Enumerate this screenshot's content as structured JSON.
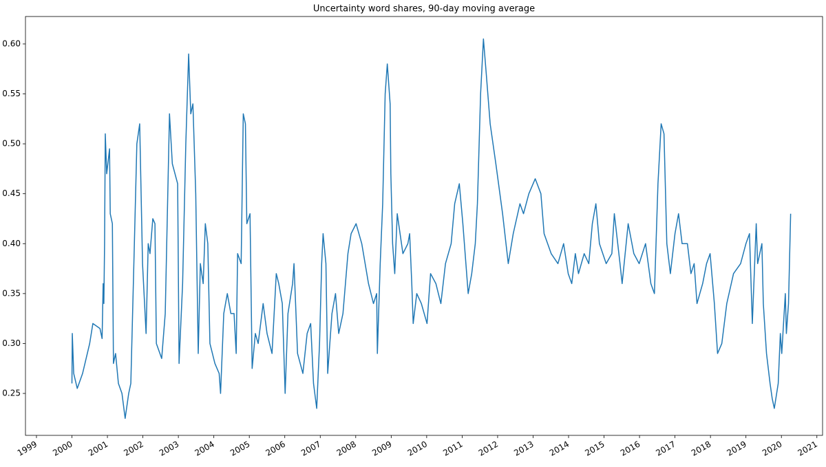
{
  "chart_data": {
    "type": "line",
    "title": "Uncertainty word shares, 90-day moving average",
    "color": "#1f77b4",
    "x": [
      2000.0,
      2000.01,
      2000.05,
      2000.15,
      2000.3,
      2000.5,
      2000.59,
      2000.79,
      2000.85,
      2000.88,
      2000.9,
      2000.92,
      2000.94,
      2000.98,
      2001.06,
      2001.08,
      2001.14,
      2001.17,
      2001.23,
      2001.31,
      2001.41,
      2001.5,
      2001.6,
      2001.66,
      2001.76,
      2001.83,
      2001.91,
      2001.99,
      2002.09,
      2002.15,
      2002.2,
      2002.28,
      2002.34,
      2002.38,
      2002.53,
      2002.63,
      2002.75,
      2002.83,
      2002.98,
      2003.02,
      2003.12,
      2003.21,
      2003.29,
      2003.35,
      2003.41,
      2003.49,
      2003.56,
      2003.62,
      2003.7,
      2003.76,
      2003.83,
      2003.89,
      2004.03,
      2004.15,
      2004.19,
      2004.28,
      2004.38,
      2004.48,
      2004.57,
      2004.63,
      2004.67,
      2004.77,
      2004.83,
      2004.89,
      2004.93,
      2005.02,
      2005.08,
      2005.17,
      2005.25,
      2005.39,
      2005.5,
      2005.64,
      2005.76,
      2005.83,
      2005.93,
      2006.01,
      2006.09,
      2006.22,
      2006.26,
      2006.36,
      2006.51,
      2006.63,
      2006.73,
      2006.81,
      2006.9,
      2006.98,
      2007.04,
      2007.08,
      2007.16,
      2007.21,
      2007.33,
      2007.43,
      2007.52,
      2007.64,
      2007.78,
      2007.87,
      2008.01,
      2008.17,
      2008.36,
      2008.5,
      2008.59,
      2008.61,
      2008.69,
      2008.76,
      2008.83,
      2008.89,
      2008.97,
      2008.99,
      2009.04,
      2009.1,
      2009.17,
      2009.33,
      2009.47,
      2009.52,
      2009.58,
      2009.62,
      2009.72,
      2009.85,
      2010.01,
      2010.11,
      2010.26,
      2010.4,
      2010.53,
      2010.69,
      2010.79,
      2010.92,
      2011.02,
      2011.17,
      2011.27,
      2011.37,
      2011.43,
      2011.52,
      2011.6,
      2011.68,
      2011.79,
      2011.95,
      2012.14,
      2012.3,
      2012.44,
      2012.63,
      2012.73,
      2012.88,
      2013.06,
      2013.22,
      2013.31,
      2013.51,
      2013.7,
      2013.86,
      2013.99,
      2014.09,
      2014.19,
      2014.28,
      2014.44,
      2014.57,
      2014.67,
      2014.77,
      2014.87,
      2015.06,
      2015.22,
      2015.29,
      2015.45,
      2015.51,
      2015.68,
      2015.84,
      2015.99,
      2016.17,
      2016.32,
      2016.42,
      2016.52,
      2016.61,
      2016.69,
      2016.77,
      2016.87,
      2017.0,
      2017.1,
      2017.2,
      2017.35,
      2017.45,
      2017.54,
      2017.62,
      2017.78,
      2017.89,
      2017.99,
      2018.11,
      2018.2,
      2018.32,
      2018.46,
      2018.65,
      2018.85,
      2019.0,
      2019.1,
      2019.18,
      2019.29,
      2019.33,
      2019.45,
      2019.49,
      2019.58,
      2019.68,
      2019.74,
      2019.8,
      2019.91,
      2019.97,
      2020.01,
      2020.11,
      2020.14,
      2020.2,
      2020.26
    ],
    "values": [
      0.26,
      0.31,
      0.27,
      0.255,
      0.27,
      0.3,
      0.32,
      0.315,
      0.305,
      0.36,
      0.34,
      0.4,
      0.51,
      0.47,
      0.495,
      0.43,
      0.42,
      0.28,
      0.29,
      0.26,
      0.25,
      0.225,
      0.25,
      0.26,
      0.4,
      0.5,
      0.52,
      0.38,
      0.31,
      0.4,
      0.39,
      0.425,
      0.42,
      0.3,
      0.285,
      0.33,
      0.53,
      0.48,
      0.46,
      0.28,
      0.36,
      0.5,
      0.59,
      0.53,
      0.54,
      0.45,
      0.29,
      0.38,
      0.36,
      0.42,
      0.4,
      0.3,
      0.28,
      0.27,
      0.25,
      0.33,
      0.35,
      0.33,
      0.33,
      0.29,
      0.39,
      0.38,
      0.53,
      0.52,
      0.42,
      0.43,
      0.275,
      0.31,
      0.3,
      0.34,
      0.31,
      0.29,
      0.37,
      0.36,
      0.34,
      0.25,
      0.33,
      0.36,
      0.38,
      0.29,
      0.27,
      0.31,
      0.32,
      0.26,
      0.235,
      0.3,
      0.38,
      0.41,
      0.38,
      0.27,
      0.33,
      0.35,
      0.31,
      0.33,
      0.39,
      0.41,
      0.42,
      0.4,
      0.36,
      0.34,
      0.35,
      0.29,
      0.38,
      0.44,
      0.55,
      0.58,
      0.54,
      0.47,
      0.4,
      0.37,
      0.43,
      0.39,
      0.4,
      0.41,
      0.36,
      0.32,
      0.35,
      0.34,
      0.32,
      0.37,
      0.36,
      0.34,
      0.38,
      0.4,
      0.44,
      0.46,
      0.42,
      0.35,
      0.37,
      0.4,
      0.44,
      0.55,
      0.605,
      0.57,
      0.52,
      0.48,
      0.43,
      0.38,
      0.41,
      0.44,
      0.43,
      0.45,
      0.465,
      0.45,
      0.41,
      0.39,
      0.38,
      0.4,
      0.37,
      0.36,
      0.39,
      0.37,
      0.39,
      0.38,
      0.42,
      0.44,
      0.4,
      0.38,
      0.39,
      0.43,
      0.38,
      0.36,
      0.42,
      0.39,
      0.38,
      0.4,
      0.36,
      0.35,
      0.46,
      0.52,
      0.51,
      0.4,
      0.37,
      0.41,
      0.43,
      0.4,
      0.4,
      0.37,
      0.38,
      0.34,
      0.36,
      0.38,
      0.39,
      0.34,
      0.29,
      0.3,
      0.34,
      0.37,
      0.38,
      0.4,
      0.41,
      0.32,
      0.42,
      0.38,
      0.4,
      0.34,
      0.29,
      0.26,
      0.245,
      0.235,
      0.26,
      0.31,
      0.29,
      0.35,
      0.31,
      0.34,
      0.43
    ],
    "xlim": [
      1998.69,
      2021.16
    ],
    "xticks": [
      1999,
      2000,
      2001,
      2002,
      2003,
      2004,
      2005,
      2006,
      2007,
      2008,
      2009,
      2010,
      2011,
      2012,
      2013,
      2014,
      2015,
      2016,
      2017,
      2018,
      2019,
      2020,
      2021
    ],
    "ylim": [
      0.208,
      0.6275
    ],
    "yticks": [
      0.25,
      {
        "value": 0.3,
        "label": "0.30"
      },
      0.35,
      {
        "value": 0.4,
        "label": "0.40"
      },
      0.45,
      {
        "value": 0.5,
        "label": "0.50"
      },
      0.55,
      {
        "value": 0.6,
        "label": "0.60"
      }
    ]
  }
}
